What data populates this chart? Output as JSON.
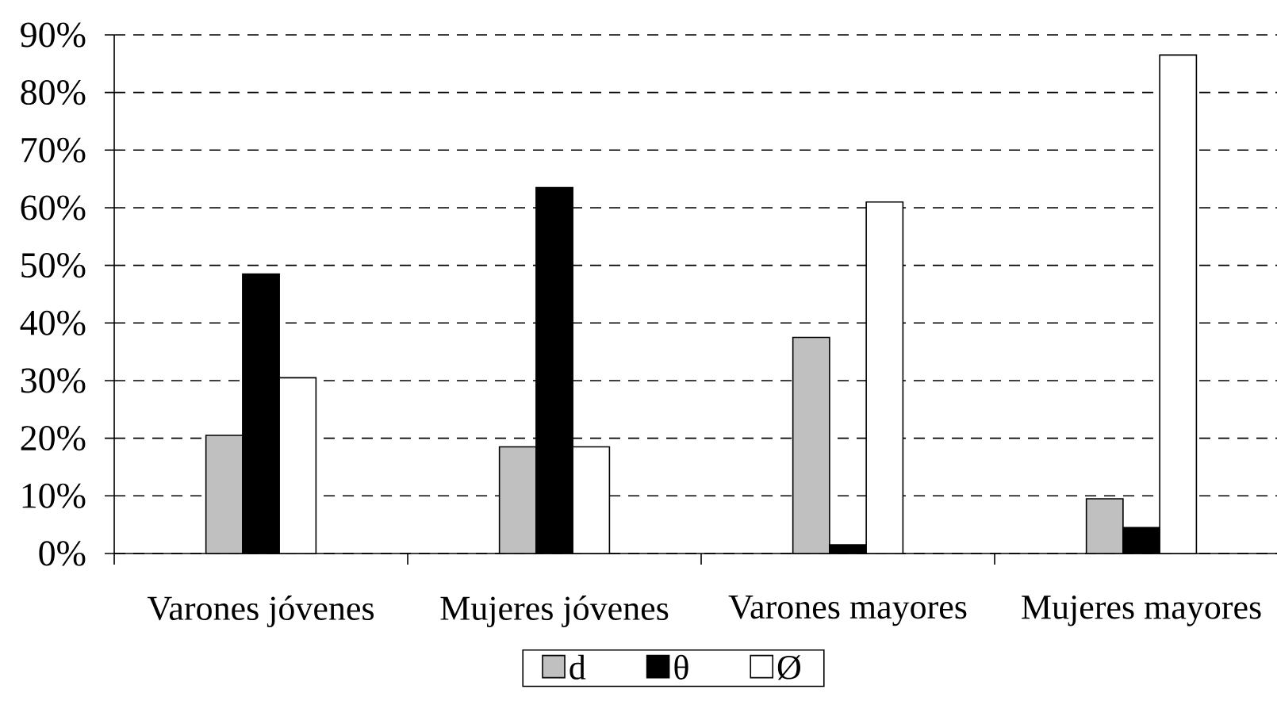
{
  "chart_data": {
    "type": "bar",
    "categories": [
      "Varones jóvenes",
      "Mujeres jóvenes",
      "Varones mayores",
      "Mujeres mayores"
    ],
    "series": [
      {
        "name": "d",
        "color": "#c0c0c0",
        "values": [
          20.5,
          18.5,
          37.5,
          9.5
        ]
      },
      {
        "name": "θ",
        "color": "#000000",
        "values": [
          48.5,
          63.5,
          1.5,
          4.5
        ]
      },
      {
        "name": "Ø",
        "color": "#ffffff",
        "values": [
          30.5,
          18.5,
          61,
          86.5
        ]
      }
    ],
    "ylim": [
      0,
      90
    ],
    "yticks": [
      {
        "value": 0,
        "label": "0%"
      },
      {
        "value": 10,
        "label": "10%"
      },
      {
        "value": 20,
        "label": "20%"
      },
      {
        "value": 30,
        "label": "30%"
      },
      {
        "value": 40,
        "label": "40%"
      },
      {
        "value": 50,
        "label": "50%"
      },
      {
        "value": 60,
        "label": "60%"
      },
      {
        "value": 70,
        "label": "70%"
      },
      {
        "value": 80,
        "label": "80%"
      },
      {
        "value": 90,
        "label": "90%"
      }
    ],
    "grid": "y",
    "legend": "bottom"
  }
}
